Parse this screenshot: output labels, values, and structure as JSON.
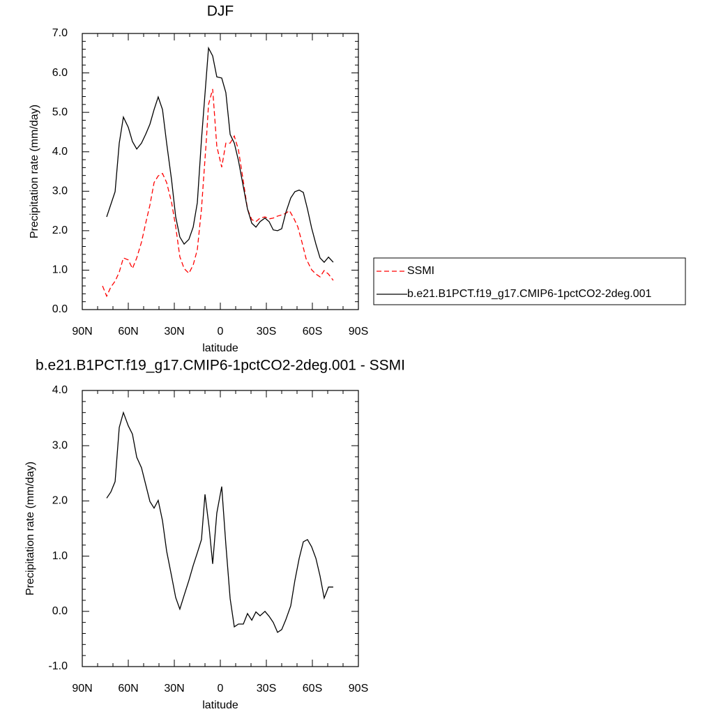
{
  "chart_data": [
    {
      "type": "line",
      "title": "DJF",
      "x_label": "latitude",
      "y_label": "Precipitation rate (mm/day)",
      "xlim": [
        90,
        -90
      ],
      "xticks": [
        {
          "value": 90,
          "label": "90N"
        },
        {
          "value": 60,
          "label": "60N"
        },
        {
          "value": 30,
          "label": "30N"
        },
        0,
        {
          "value": -30,
          "label": "30S"
        },
        {
          "value": -60,
          "label": "60S"
        },
        {
          "value": -90,
          "label": "90S"
        }
      ],
      "ylim": [
        0,
        7
      ],
      "yticks": [
        {
          "value": 0,
          "label": "0.0"
        },
        {
          "value": 1,
          "label": "1.0"
        },
        {
          "value": 2,
          "label": "2.0"
        },
        {
          "value": 3,
          "label": "3.0"
        },
        {
          "value": 4,
          "label": "4.0"
        },
        {
          "value": 5,
          "label": "5.0"
        },
        {
          "value": 6,
          "label": "6.0"
        },
        {
          "value": 7,
          "label": "7.0"
        }
      ],
      "series": [
        {
          "name": "SSMI",
          "color": "#ff0000",
          "dashed": true,
          "x": [
            76.8,
            74.1,
            71.4,
            68.6,
            65.9,
            63.2,
            60.0,
            57.3,
            54.5,
            51.4,
            48.6,
            45.9,
            43.2,
            40.5,
            37.7,
            35.0,
            31.8,
            29.1,
            26.4,
            23.6,
            20.5,
            17.7,
            15.0,
            12.3,
            9.1,
            7.7,
            5.0,
            2.3,
            -0.9,
            -3.6,
            -6.4,
            -9.1,
            -11.8,
            -15.0,
            -17.7,
            -20.5,
            -23.2,
            -25.9,
            -29.1,
            -31.8,
            -34.5,
            -37.3,
            -40.0,
            -42.7,
            -45.0,
            -47.7,
            -50.5,
            -53.2,
            -55.9,
            -59.5,
            -62.3,
            -65.0,
            -67.7,
            -70.5,
            -73.6
          ],
          "values": [
            0.6,
            0.34,
            0.57,
            0.72,
            0.95,
            1.31,
            1.26,
            1.04,
            1.31,
            1.71,
            2.2,
            2.65,
            3.22,
            3.39,
            3.45,
            3.22,
            2.72,
            2.1,
            1.34,
            1.04,
            0.92,
            1.13,
            1.52,
            2.55,
            4.31,
            5.2,
            5.59,
            4.14,
            3.61,
            4.22,
            4.22,
            4.4,
            4.05,
            3.25,
            2.55,
            2.28,
            2.23,
            2.32,
            2.35,
            2.3,
            2.32,
            2.37,
            2.4,
            2.44,
            2.51,
            2.33,
            2.1,
            1.71,
            1.29,
            1.01,
            0.9,
            0.83,
            0.99,
            0.9,
            0.74
          ]
        },
        {
          "name": "b.e21.B1PCT.f19_g17.CMIP6-1pctCO2-2deg.001",
          "color": "#000000",
          "dashed": false,
          "x": [
            74.1,
            68.6,
            65.9,
            63.2,
            60.0,
            57.3,
            54.5,
            51.4,
            48.6,
            45.9,
            43.2,
            40.5,
            37.7,
            35.0,
            31.8,
            29.1,
            26.4,
            23.6,
            20.5,
            17.7,
            15.0,
            12.3,
            7.7,
            5.0,
            2.3,
            -0.9,
            -3.6,
            -6.4,
            -9.1,
            -11.8,
            -15.0,
            -17.7,
            -20.5,
            -23.2,
            -25.9,
            -29.1,
            -31.8,
            -34.5,
            -37.3,
            -40.0,
            -42.7,
            -45.9,
            -48.6,
            -51.4,
            -54.1,
            -56.8,
            -59.5,
            -62.3,
            -65.0,
            -67.7,
            -70.5,
            -73.6
          ],
          "values": [
            2.35,
            2.99,
            4.22,
            4.88,
            4.62,
            4.26,
            4.07,
            4.22,
            4.45,
            4.7,
            5.07,
            5.39,
            5.07,
            4.22,
            3.29,
            2.35,
            1.84,
            1.66,
            1.78,
            2.09,
            2.71,
            4.31,
            6.63,
            6.43,
            5.9,
            5.87,
            5.5,
            4.44,
            4.22,
            3.78,
            3.11,
            2.55,
            2.19,
            2.09,
            2.23,
            2.32,
            2.23,
            2.02,
            2.0,
            2.05,
            2.46,
            2.83,
            2.99,
            3.03,
            2.97,
            2.55,
            2.07,
            1.66,
            1.31,
            1.2,
            1.33,
            1.2
          ]
        }
      ]
    },
    {
      "type": "line",
      "title": "b.e21.B1PCT.f19_g17.CMIP6-1pctCO2-2deg.001 - SSMI",
      "x_label": "latitude",
      "y_label": "Precipitation rate (mm/day)",
      "xlim": [
        90,
        -90
      ],
      "xticks": [
        {
          "value": 90,
          "label": "90N"
        },
        {
          "value": 60,
          "label": "60N"
        },
        {
          "value": 30,
          "label": "30N"
        },
        0,
        {
          "value": -30,
          "label": "30S"
        },
        {
          "value": -60,
          "label": "60S"
        },
        {
          "value": -90,
          "label": "90S"
        }
      ],
      "ylim": [
        -1,
        4
      ],
      "yticks": [
        {
          "value": -1,
          "label": "-1.0"
        },
        {
          "value": 0,
          "label": "0.0"
        },
        {
          "value": 1,
          "label": "1.0"
        },
        {
          "value": 2,
          "label": "2.0"
        },
        {
          "value": 3,
          "label": "3.0"
        },
        {
          "value": 4,
          "label": "4.0"
        }
      ],
      "color": "#000000",
      "x": [
        74.1,
        71.4,
        68.6,
        65.9,
        63.2,
        60.0,
        57.3,
        54.5,
        51.4,
        48.6,
        45.9,
        43.2,
        40.5,
        37.7,
        35.0,
        31.8,
        29.1,
        26.4,
        23.6,
        20.5,
        17.7,
        15.0,
        12.3,
        10.0,
        7.3,
        5.0,
        2.3,
        -0.9,
        -3.6,
        -6.4,
        -9.1,
        -11.8,
        -15.0,
        -17.7,
        -20.5,
        -23.2,
        -25.9,
        -29.1,
        -31.8,
        -34.5,
        -37.3,
        -40.0,
        -42.7,
        -45.9,
        -48.6,
        -51.4,
        -54.1,
        -56.8,
        -59.5,
        -62.3,
        -65.0,
        -67.7,
        -70.5,
        -73.6
      ],
      "values": [
        2.05,
        2.16,
        2.35,
        3.33,
        3.6,
        3.36,
        3.21,
        2.79,
        2.6,
        2.29,
        1.99,
        1.87,
        2.01,
        1.64,
        1.09,
        0.64,
        0.25,
        0.04,
        0.29,
        0.56,
        0.83,
        1.06,
        1.3,
        2.12,
        1.52,
        0.86,
        1.78,
        2.26,
        1.21,
        0.23,
        -0.28,
        -0.23,
        -0.23,
        -0.04,
        -0.16,
        -0.01,
        -0.08,
        0.0,
        -0.09,
        -0.2,
        -0.38,
        -0.33,
        -0.15,
        0.1,
        0.56,
        0.96,
        1.26,
        1.3,
        1.17,
        0.96,
        0.64,
        0.24,
        0.44,
        0.44
      ]
    }
  ]
}
